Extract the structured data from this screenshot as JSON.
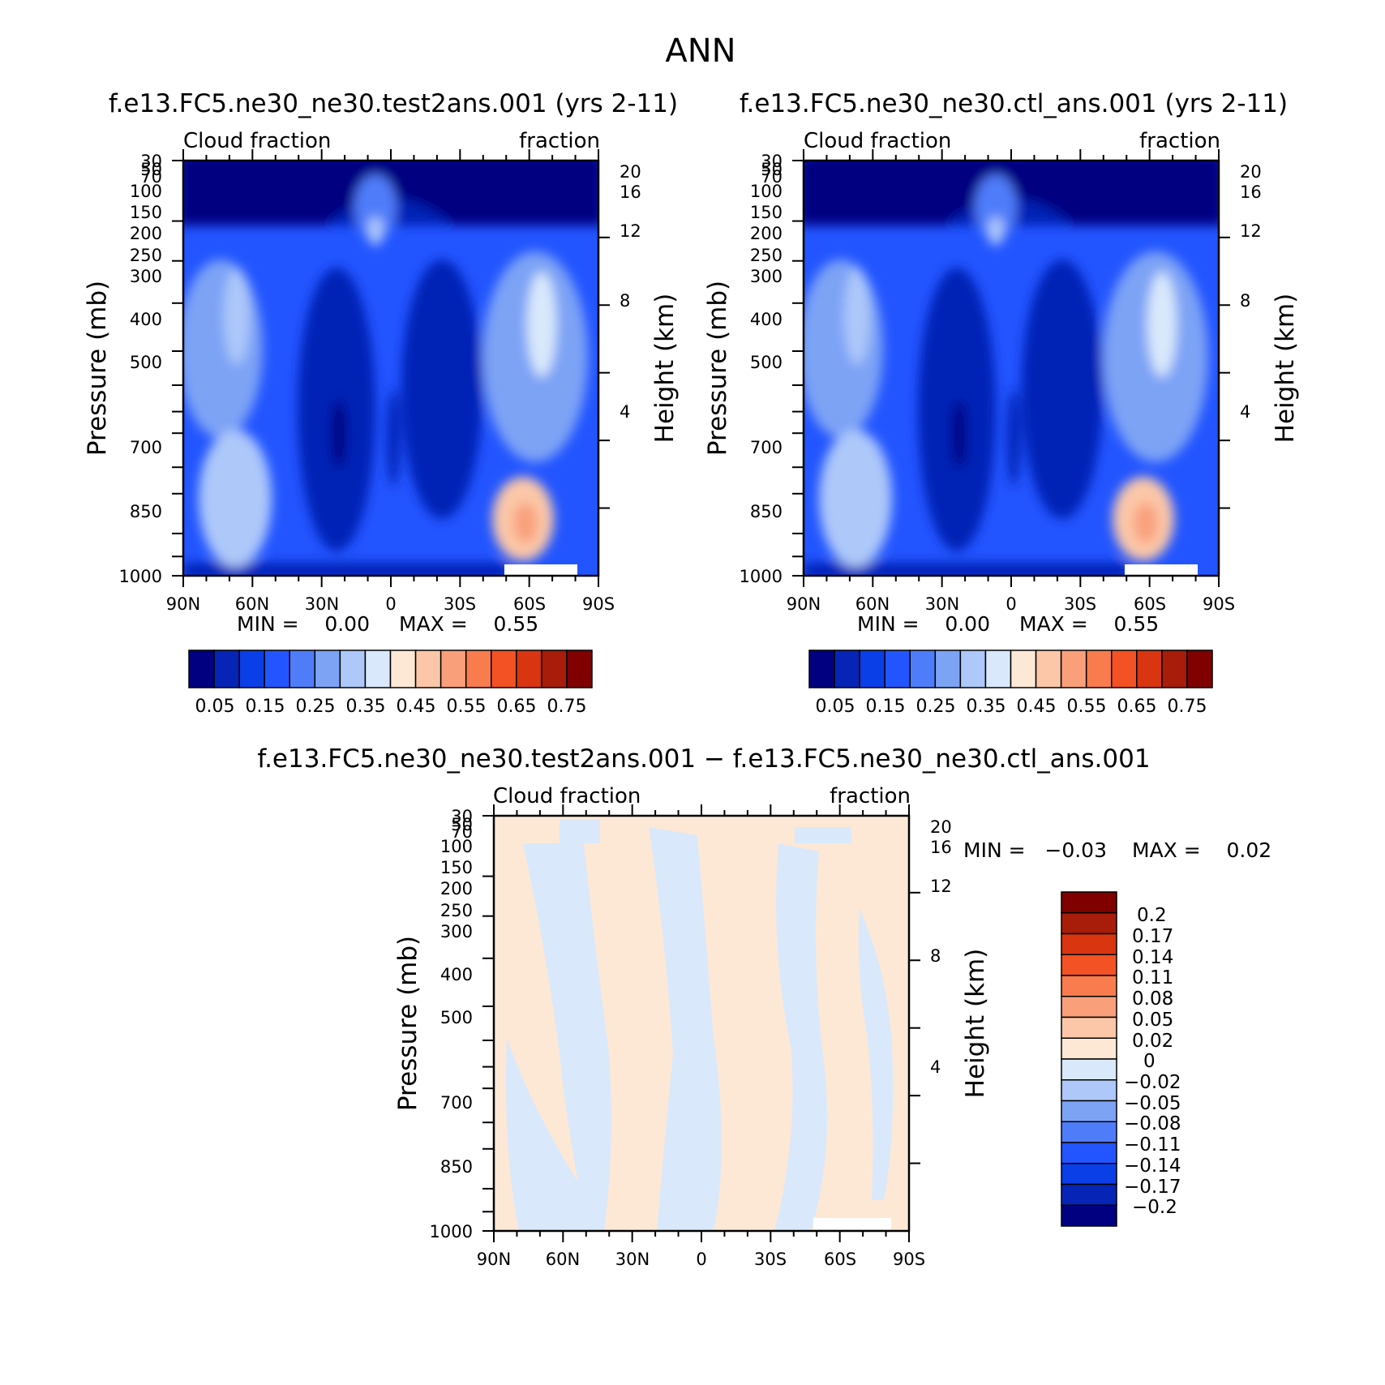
{
  "season": "ANN",
  "chart_data": [
    {
      "type": "heatmap",
      "title": "f.e13.FC5.ne30_ne30.test2ans.001 (yrs 2-11)",
      "left_label": "Cloud fraction",
      "right_label": "fraction",
      "xlabel": "",
      "ylabel": "Pressure (mb)",
      "ylabel_right": "Height (km)",
      "x_ticks": [
        "90N",
        "60N",
        "30N",
        "0",
        "30S",
        "60S",
        "90S"
      ],
      "y_ticks": [
        "30",
        "50",
        "70",
        "100",
        "150",
        "200",
        "250",
        "300",
        "400",
        "500",
        "700",
        "850",
        "1000"
      ],
      "height_ticks": [
        "20",
        "16",
        "12",
        "8",
        "4"
      ],
      "xlim": [
        90,
        -90
      ],
      "ylim": [
        30,
        1000
      ],
      "min_text": "MIN =    0.00",
      "max_text": "MAX =    0.55",
      "colorbar_labels": [
        "0.05",
        "0.15",
        "0.25",
        "0.35",
        "0.45",
        "0.55",
        "0.65",
        "0.75"
      ],
      "colorbar_colors": [
        "#000080",
        "#0624b5",
        "#0a3ee6",
        "#2255ff",
        "#4f7dfa",
        "#7da3f5",
        "#adc8f9",
        "#d9e9fb",
        "#fde8d6",
        "#fbc7a8",
        "#f9a07b",
        "#f87c4e",
        "#f35224",
        "#d83510",
        "#a81c0a",
        "#800000"
      ]
    },
    {
      "type": "heatmap",
      "title": "f.e13.FC5.ne30_ne30.ctl_ans.001 (yrs 2-11)",
      "left_label": "Cloud fraction",
      "right_label": "fraction",
      "xlabel": "",
      "ylabel": "Pressure (mb)",
      "ylabel_right": "Height (km)",
      "x_ticks": [
        "90N",
        "60N",
        "30N",
        "0",
        "30S",
        "60S",
        "90S"
      ],
      "y_ticks": [
        "30",
        "50",
        "70",
        "100",
        "150",
        "200",
        "250",
        "300",
        "400",
        "500",
        "700",
        "850",
        "1000"
      ],
      "height_ticks": [
        "20",
        "16",
        "12",
        "8",
        "4"
      ],
      "xlim": [
        90,
        -90
      ],
      "ylim": [
        30,
        1000
      ],
      "min_text": "MIN =    0.00",
      "max_text": "MAX =    0.55",
      "colorbar_labels": [
        "0.05",
        "0.15",
        "0.25",
        "0.35",
        "0.45",
        "0.55",
        "0.65",
        "0.75"
      ],
      "colorbar_colors": [
        "#000080",
        "#0624b5",
        "#0a3ee6",
        "#2255ff",
        "#4f7dfa",
        "#7da3f5",
        "#adc8f9",
        "#d9e9fb",
        "#fde8d6",
        "#fbc7a8",
        "#f9a07b",
        "#f87c4e",
        "#f35224",
        "#d83510",
        "#a81c0a",
        "#800000"
      ]
    },
    {
      "type": "heatmap",
      "title": "f.e13.FC5.ne30_ne30.test2ans.001 − f.e13.FC5.ne30_ne30.ctl_ans.001",
      "left_label": "Cloud fraction",
      "right_label": "fraction",
      "xlabel": "",
      "ylabel": "Pressure (mb)",
      "ylabel_right": "Height (km)",
      "x_ticks": [
        "90N",
        "60N",
        "30N",
        "0",
        "30S",
        "60S",
        "90S"
      ],
      "y_ticks": [
        "30",
        "50",
        "70",
        "100",
        "150",
        "200",
        "250",
        "300",
        "400",
        "500",
        "700",
        "850",
        "1000"
      ],
      "height_ticks": [
        "20",
        "16",
        "12",
        "8",
        "4"
      ],
      "xlim": [
        90,
        -90
      ],
      "ylim": [
        30,
        1000
      ],
      "min_text": "MIN =   −0.03",
      "max_text": "MAX =    0.02",
      "colorbar_labels": [
        "0.2",
        "0.17",
        "0.14",
        "0.11",
        "0.08",
        "0.05",
        "0.02",
        "0",
        "−0.02",
        "−0.05",
        "−0.08",
        "−0.11",
        "−0.14",
        "−0.17",
        "−0.2"
      ],
      "colorbar_colors": [
        "#800000",
        "#a81c0a",
        "#d83510",
        "#f35224",
        "#f87c4e",
        "#f9a07b",
        "#fbc7a8",
        "#fde8d6",
        "#d9e9fb",
        "#adc8f9",
        "#7da3f5",
        "#4f7dfa",
        "#2255ff",
        "#0a3ee6",
        "#0624b5",
        "#000080"
      ]
    }
  ]
}
